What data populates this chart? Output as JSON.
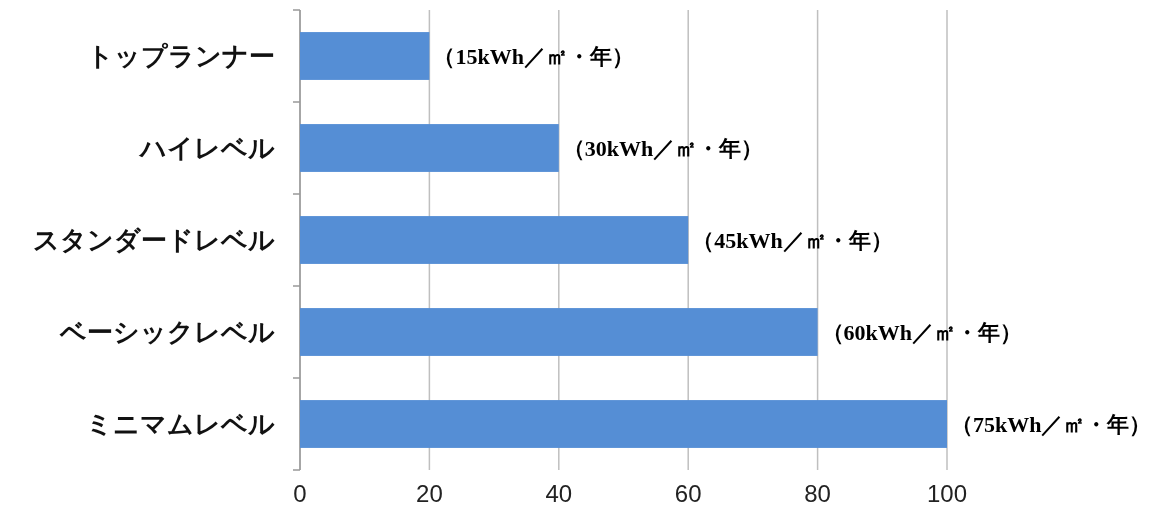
{
  "chart_data": {
    "type": "bar",
    "orientation": "horizontal",
    "categories": [
      "トップランナー",
      "ハイレベル",
      "スタンダードレベル",
      "ベーシックレベル",
      "ミニマムレベル"
    ],
    "values": [
      20,
      40,
      60,
      80,
      100
    ],
    "annotations": [
      {
        "text": "（15kWh／㎡・年）",
        "x": 20,
        "y": "トップランナー"
      },
      {
        "text": "（30kWh／㎡・年）",
        "x": 40,
        "y": "ハイレベル"
      },
      {
        "text": "（45kWh／㎡・年）",
        "x": 60,
        "y": "スタンダードレベル"
      },
      {
        "text": "（60kWh／㎡・年）",
        "x": 80,
        "y": "ベーシックレベル"
      },
      {
        "text": "（75kWh／㎡・年）",
        "x": 100,
        "y": "ミニマムレベル"
      }
    ],
    "color": "#558ed5",
    "xlim": [
      0,
      100
    ],
    "xticks": [
      0,
      20,
      40,
      60,
      80,
      100
    ],
    "grid": "x"
  }
}
